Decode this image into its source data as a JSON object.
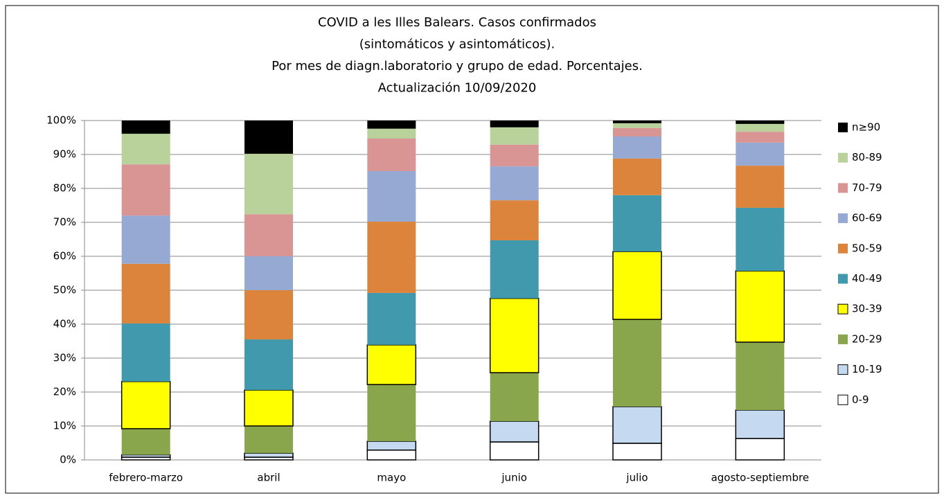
{
  "chart_data": {
    "type": "stacked_bar",
    "title": [
      "COVID a les Illes Balears.  Casos confirmados",
      "(sintomáticos y asintomáticos).",
      "Por mes de diagn.laboratorio  y grupo de edad. Porcentajes.",
      "Actualización  10/09/2020"
    ],
    "categories": [
      "febrero-marzo",
      "abril",
      "mayo",
      "junio",
      "julio",
      "agosto-septiembre"
    ],
    "series": [
      {
        "name": "0-9",
        "color": "#ffffff",
        "stroke": "#000000",
        "values": [
          0.8,
          0.8,
          2.9,
          5.3,
          4.9,
          6.3
        ]
      },
      {
        "name": "10-19",
        "color": "#c5d9f1",
        "stroke": "#000000",
        "values": [
          0.7,
          1.2,
          2.6,
          6.1,
          10.8,
          8.4
        ]
      },
      {
        "name": "20-29",
        "color": "#8aa64d",
        "values": [
          7.7,
          8.0,
          16.7,
          14.3,
          25.7,
          20.0
        ]
      },
      {
        "name": "30-39",
        "color": "#ffff00",
        "stroke": "#000000",
        "values": [
          13.9,
          10.6,
          11.7,
          21.9,
          20.0,
          21.0
        ]
      },
      {
        "name": "40-49",
        "color": "#4099ad",
        "values": [
          17.1,
          14.9,
          15.3,
          17.1,
          16.6,
          18.6
        ]
      },
      {
        "name": "50-59",
        "color": "#dd843c",
        "values": [
          17.6,
          14.5,
          21.0,
          11.8,
          10.8,
          12.4
        ]
      },
      {
        "name": "60-69",
        "color": "#95a9d3",
        "values": [
          14.2,
          10.0,
          14.9,
          10.0,
          6.5,
          6.8
        ]
      },
      {
        "name": "70-79",
        "color": "#d99594",
        "values": [
          15.1,
          12.4,
          9.6,
          6.4,
          2.5,
          3.2
        ]
      },
      {
        "name": "80-89",
        "color": "#b9d19a",
        "values": [
          9.0,
          17.8,
          2.9,
          5.1,
          1.4,
          2.3
        ]
      },
      {
        "name": "n≥90",
        "color": "#000000",
        "values": [
          3.9,
          9.8,
          2.4,
          2.0,
          0.8,
          1.0
        ]
      }
    ],
    "ylim": [
      0,
      100
    ],
    "yticks": [
      {
        "value": 0,
        "label": "0%"
      },
      {
        "value": 10,
        "label": "10%"
      },
      {
        "value": 20,
        "label": "20%"
      },
      {
        "value": 30,
        "label": "30%"
      },
      {
        "value": 40,
        "label": "40%"
      },
      {
        "value": 50,
        "label": "50%"
      },
      {
        "value": 60,
        "label": "60%"
      },
      {
        "value": 70,
        "label": "70%"
      },
      {
        "value": 80,
        "label": "80%"
      },
      {
        "value": 90,
        "label": "90%"
      },
      {
        "value": 100,
        "label": "100%"
      }
    ],
    "grid": true,
    "legend": "right"
  }
}
